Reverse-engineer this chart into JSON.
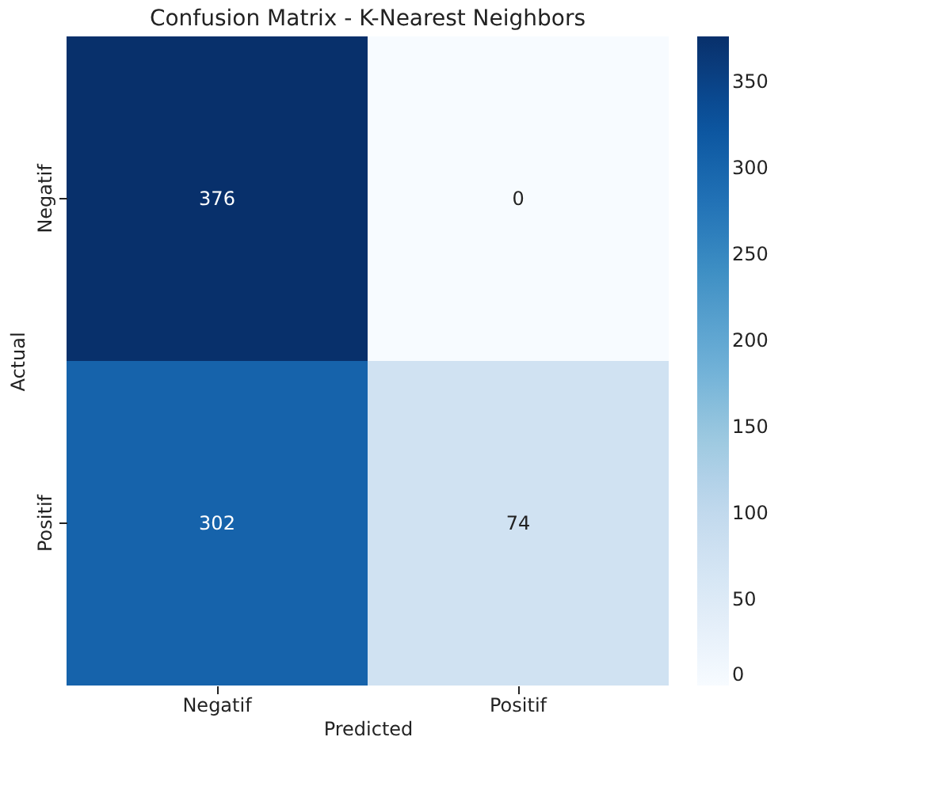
{
  "chart_data": {
    "type": "heatmap",
    "title": "Confusion Matrix - K-Nearest Neighbors",
    "xlabel": "Predicted",
    "ylabel": "Actual",
    "categories": [
      "Negatif",
      "Positif"
    ],
    "y_categories": [
      "Negatif",
      "Positif"
    ],
    "cells": [
      [
        376,
        0
      ],
      [
        302,
        74
      ]
    ],
    "data_labels": true,
    "clim": [
      0,
      376
    ],
    "cticks": [
      0,
      50,
      100,
      150,
      200,
      250,
      300,
      350
    ]
  }
}
